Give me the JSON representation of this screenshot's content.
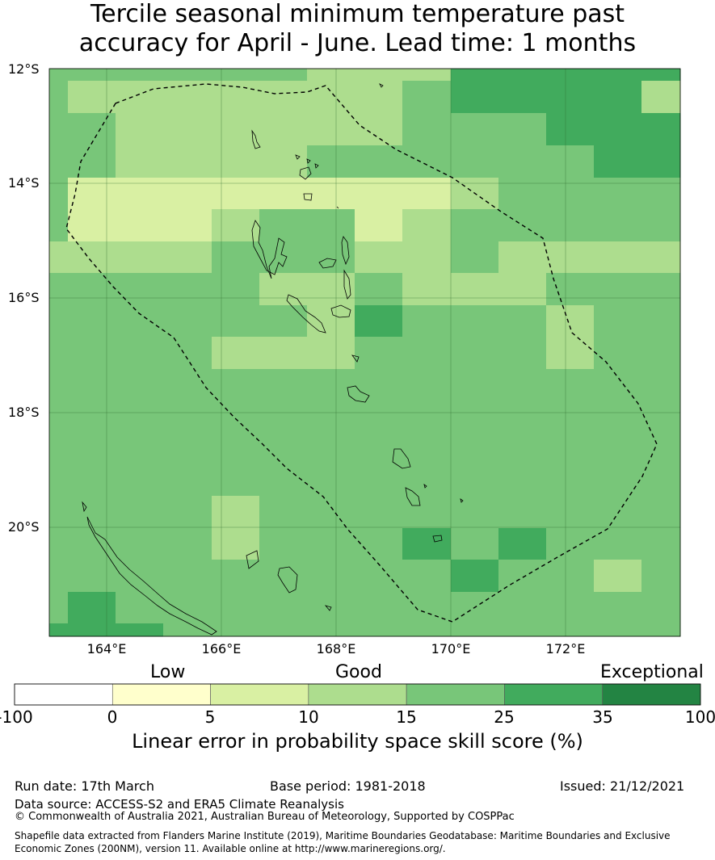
{
  "title": {
    "line1": "Tercile seasonal minimum temperature past",
    "line2": "accuracy for April - June. Lead time: 1 months"
  },
  "map": {
    "lat_labels": [
      "12°S",
      "14°S",
      "16°S",
      "18°S",
      "20°S"
    ],
    "lon_labels": [
      "164°E",
      "166°E",
      "168°E",
      "170°E",
      "172°E"
    ],
    "lon_range": [
      163.0,
      174.0
    ],
    "lat_range": [
      -21.9,
      -12.0
    ],
    "skill_grid_description_rows": 18,
    "skill_grid_cols": 13
  },
  "colorbar": {
    "categories": [
      "Low",
      "Good",
      "Exceptional"
    ],
    "ticks": [
      "-100",
      "0",
      "5",
      "10",
      "15",
      "25",
      "35",
      "100"
    ],
    "colors": [
      "#ffffff",
      "#ffffcc",
      "#d9f0a3",
      "#addd8e",
      "#78c679",
      "#41ab5d",
      "#238443"
    ],
    "title": "Linear error in probability space skill score (%)"
  },
  "footer": {
    "run_date": "Run date: 17th March",
    "base_period": "Base period: 1981-2018",
    "issued": "Issued: 21/12/2021",
    "data_source": "Data source: ACCESS-S2 and ERA5 Climate Reanalysis",
    "copyright": "© Commonwealth of Australia 2021, Australian Bureau of Meteorology, Supported by COSPPac",
    "shapefile_line1": "Shapefile data extracted from Flanders Marine Institute (2019), Maritime Boundaries Geodatabase: Maritime Boundaries and Exclusive",
    "shapefile_line2": "Economic Zones (200NM), version 11. Available online at http://www.marineregions.org/."
  }
}
